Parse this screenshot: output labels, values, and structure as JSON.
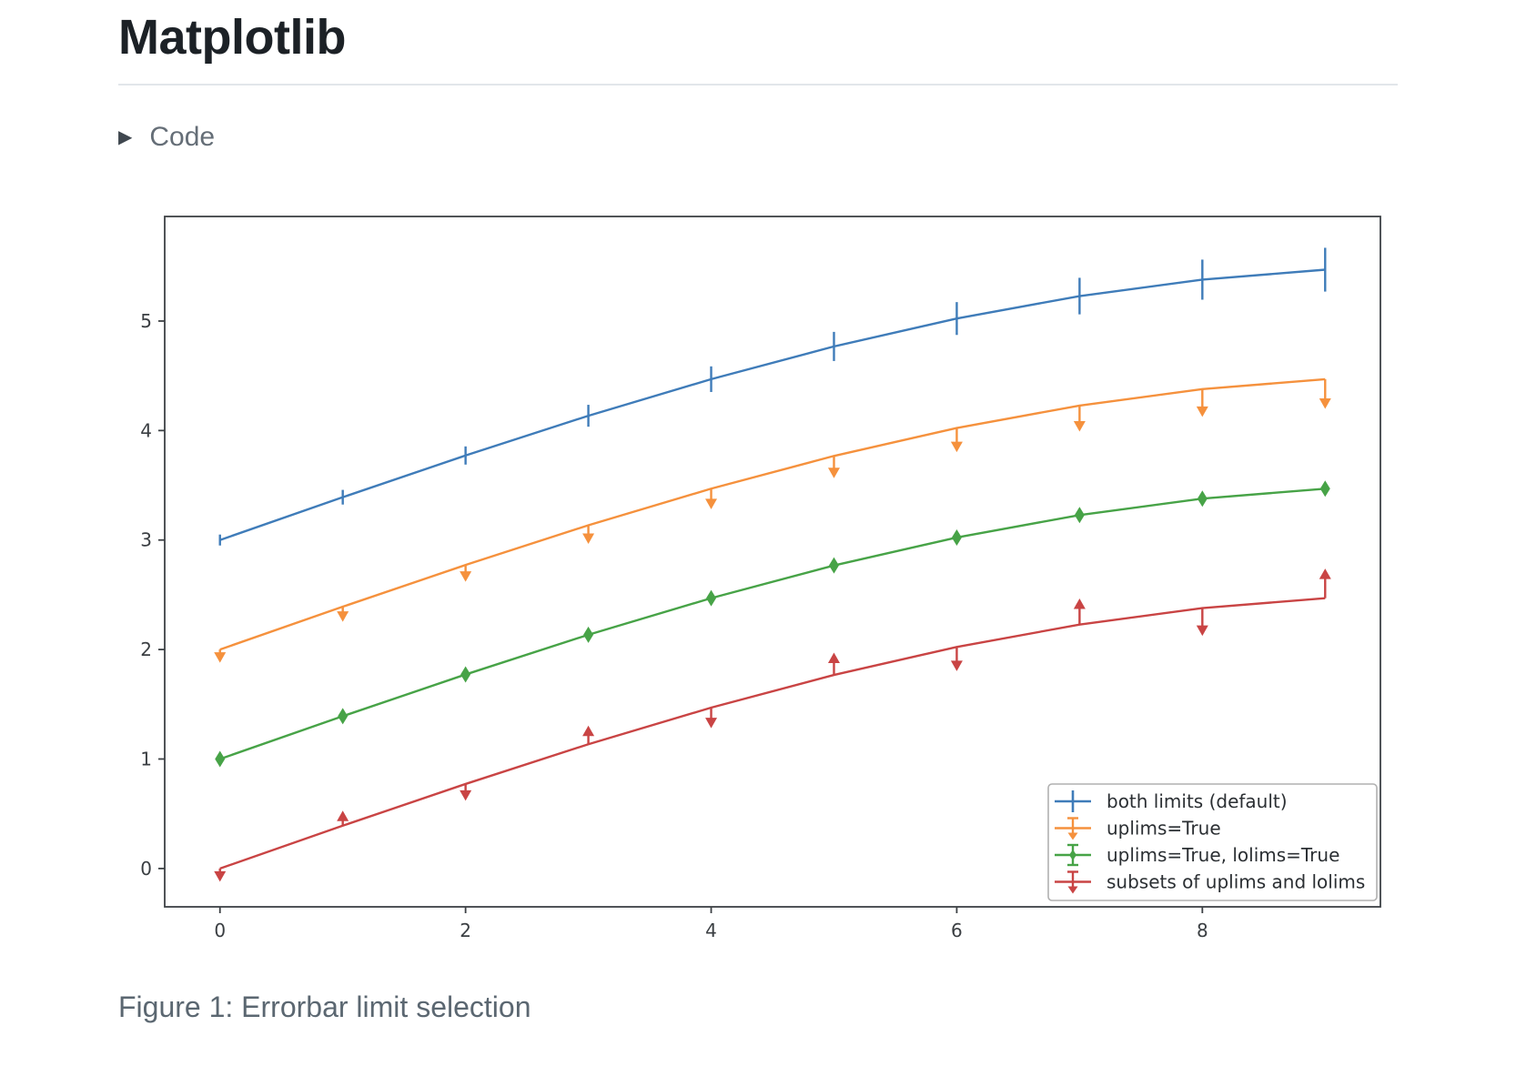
{
  "header": {
    "title": "Matplotlib"
  },
  "code_section": {
    "label": "Code",
    "icon": "triangle-right-icon"
  },
  "caption": "Figure 1: Errorbar limit selection",
  "chart_data": {
    "type": "line",
    "subtype": "errorbar",
    "title": "",
    "xlabel": "",
    "ylabel": "",
    "grid": false,
    "x": [
      0,
      1,
      2,
      3,
      4,
      5,
      6,
      7,
      8,
      9
    ],
    "yerr": [
      0.05,
      0.067,
      0.083,
      0.1,
      0.117,
      0.133,
      0.15,
      0.167,
      0.183,
      0.2
    ],
    "series": [
      {
        "name": "both limits (default)",
        "color": "#3f7cb9",
        "limit_style": "both",
        "values": [
          3.0,
          3.391,
          3.772,
          4.135,
          4.469,
          4.768,
          5.023,
          5.228,
          5.378,
          5.469
        ]
      },
      {
        "name": "uplims=True",
        "color": "#f5913d",
        "limit_style": "uplims",
        "values": [
          2.0,
          2.391,
          2.772,
          3.135,
          3.469,
          3.768,
          4.023,
          4.228,
          4.378,
          4.469
        ]
      },
      {
        "name": "uplims=True, lolims=True",
        "color": "#47a347",
        "limit_style": "uplims_lolims",
        "values": [
          1.0,
          1.391,
          1.772,
          2.135,
          2.469,
          2.768,
          3.023,
          3.228,
          3.378,
          3.469
        ]
      },
      {
        "name": "subsets of uplims and lolims",
        "color": "#c94444",
        "limit_style": "alternating",
        "uplims_at": [
          0,
          2,
          4,
          6,
          8
        ],
        "lolims_at": [
          1,
          3,
          5,
          7,
          9
        ],
        "values": [
          0.0,
          0.391,
          0.772,
          1.135,
          1.469,
          1.768,
          2.023,
          2.228,
          2.378,
          2.469
        ]
      }
    ],
    "xticks": [
      0,
      2,
      4,
      6,
      8
    ],
    "yticks": [
      0,
      1,
      2,
      3,
      4,
      5
    ],
    "xlim": [
      -0.45,
      9.45
    ],
    "ylim": [
      -0.35,
      5.955
    ],
    "legend": {
      "location": "lower right"
    },
    "axis_color": "#3d4145",
    "tick_label_color": "#3a3e42",
    "legend_text_color": "#2b2f33",
    "legend_border_color": "#b0b0b0"
  }
}
